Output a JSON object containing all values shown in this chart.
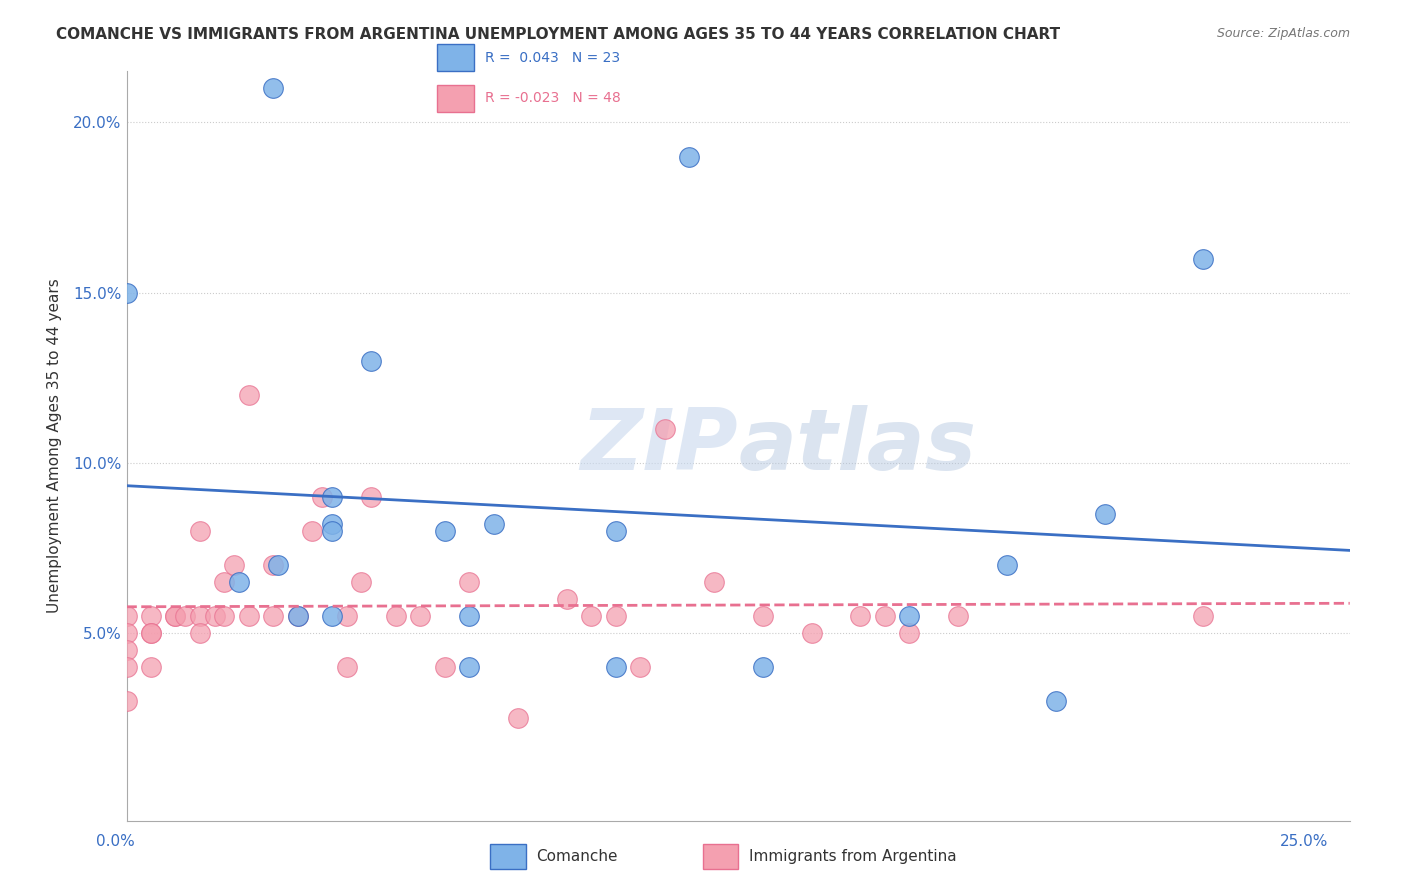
{
  "title": "COMANCHE VS IMMIGRANTS FROM ARGENTINA UNEMPLOYMENT AMONG AGES 35 TO 44 YEARS CORRELATION CHART",
  "source": "Source: ZipAtlas.com",
  "ylabel": "Unemployment Among Ages 35 to 44 years",
  "xlim": [
    0.0,
    0.25
  ],
  "ylim": [
    -0.005,
    0.215
  ],
  "yticks": [
    0.05,
    0.1,
    0.15,
    0.2
  ],
  "ytick_labels": [
    "5.0%",
    "10.0%",
    "15.0%",
    "20.0%"
  ],
  "watermark_zip": "ZIP",
  "watermark_atlas": "atlas",
  "legend_r1_label": "R =  0.043   N = 23",
  "legend_r2_label": "R = -0.023   N = 48",
  "comanche_color": "#7fb3e8",
  "argentina_color": "#f4a0b0",
  "comanche_line_color": "#3a6fc4",
  "argentina_line_color": "#e87090",
  "background_color": "#ffffff",
  "comanche_x": [
    0.031,
    0.0,
    0.05,
    0.075,
    0.042,
    0.042,
    0.042,
    0.042,
    0.035,
    0.07,
    0.07,
    0.065,
    0.1,
    0.1,
    0.16,
    0.18,
    0.115,
    0.19,
    0.2,
    0.22,
    0.13,
    0.03,
    0.023
  ],
  "comanche_y": [
    0.07,
    0.15,
    0.13,
    0.082,
    0.09,
    0.082,
    0.08,
    0.055,
    0.055,
    0.04,
    0.055,
    0.08,
    0.08,
    0.04,
    0.055,
    0.07,
    0.19,
    0.03,
    0.085,
    0.16,
    0.04,
    0.21,
    0.065
  ],
  "argentina_x": [
    0.0,
    0.0,
    0.0,
    0.0,
    0.0,
    0.005,
    0.005,
    0.005,
    0.005,
    0.01,
    0.01,
    0.012,
    0.015,
    0.015,
    0.015,
    0.018,
    0.02,
    0.02,
    0.022,
    0.025,
    0.025,
    0.03,
    0.03,
    0.035,
    0.038,
    0.04,
    0.045,
    0.045,
    0.048,
    0.05,
    0.055,
    0.06,
    0.065,
    0.07,
    0.08,
    0.09,
    0.095,
    0.1,
    0.105,
    0.11,
    0.12,
    0.13,
    0.14,
    0.15,
    0.155,
    0.16,
    0.17,
    0.22
  ],
  "argentina_y": [
    0.055,
    0.05,
    0.045,
    0.04,
    0.03,
    0.055,
    0.05,
    0.05,
    0.04,
    0.055,
    0.055,
    0.055,
    0.08,
    0.055,
    0.05,
    0.055,
    0.065,
    0.055,
    0.07,
    0.12,
    0.055,
    0.07,
    0.055,
    0.055,
    0.08,
    0.09,
    0.055,
    0.04,
    0.065,
    0.09,
    0.055,
    0.055,
    0.04,
    0.065,
    0.025,
    0.06,
    0.055,
    0.055,
    0.04,
    0.11,
    0.065,
    0.055,
    0.05,
    0.055,
    0.055,
    0.05,
    0.055,
    0.055
  ]
}
